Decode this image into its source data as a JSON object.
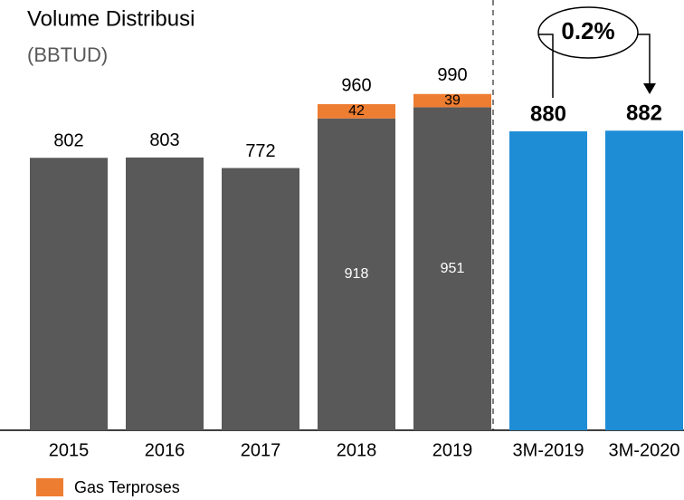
{
  "chart_data": {
    "type": "bar",
    "stacked": true,
    "title": "Volume Distribusi",
    "subtitle": "(BBTUD)",
    "categories": [
      "2015",
      "2016",
      "2017",
      "2018",
      "2019",
      "3M-2019",
      "3M-2020"
    ],
    "series": [
      {
        "color": "#595959",
        "values": [
          802,
          803,
          772,
          918,
          951,
          null,
          null
        ]
      },
      {
        "name": "Gas Terproses",
        "color": "#ed7d31",
        "values": [
          null,
          null,
          null,
          42,
          39,
          null,
          null
        ]
      },
      {
        "color": "#1f8dd6",
        "values": [
          null,
          null,
          null,
          null,
          null,
          880,
          882
        ]
      }
    ],
    "totals": [
      null,
      null,
      null,
      960,
      990,
      null,
      null
    ],
    "annotation": "0.2%",
    "ylim": [
      0,
      1000
    ],
    "legend": "bottom-left"
  }
}
